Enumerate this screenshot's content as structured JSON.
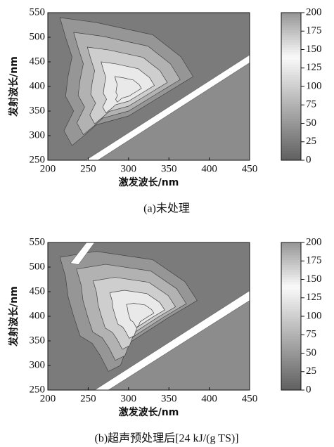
{
  "chart_data": [
    {
      "type": "contour",
      "xlabel": "激发波长/nm",
      "ylabel": "发射波长/nm",
      "caption": "(a)未处理",
      "xlim": [
        200,
        450
      ],
      "xticks": [
        200,
        250,
        300,
        350,
        400,
        450
      ],
      "ylim": [
        250,
        550
      ],
      "yticks": [
        250,
        300,
        350,
        400,
        450,
        500,
        550
      ],
      "colorbar": {
        "lim": [
          0,
          200
        ],
        "ticks": [
          0,
          25,
          50,
          75,
          100,
          125,
          150,
          175,
          200
        ]
      }
    },
    {
      "type": "contour",
      "xlabel": "激发波长/nm",
      "ylabel": "发射波长/nm",
      "caption": "(b)超声预处理后[24 kJ/(g TS)]",
      "xlim": [
        200,
        450
      ],
      "xticks": [
        200,
        250,
        300,
        350,
        400,
        450
      ],
      "ylim": [
        250,
        550
      ],
      "yticks": [
        250,
        300,
        350,
        400,
        450,
        500,
        550
      ],
      "colorbar": {
        "lim": [
          0,
          200
        ],
        "ticks": [
          0,
          25,
          50,
          75,
          100,
          125,
          150,
          175,
          200
        ]
      }
    }
  ]
}
